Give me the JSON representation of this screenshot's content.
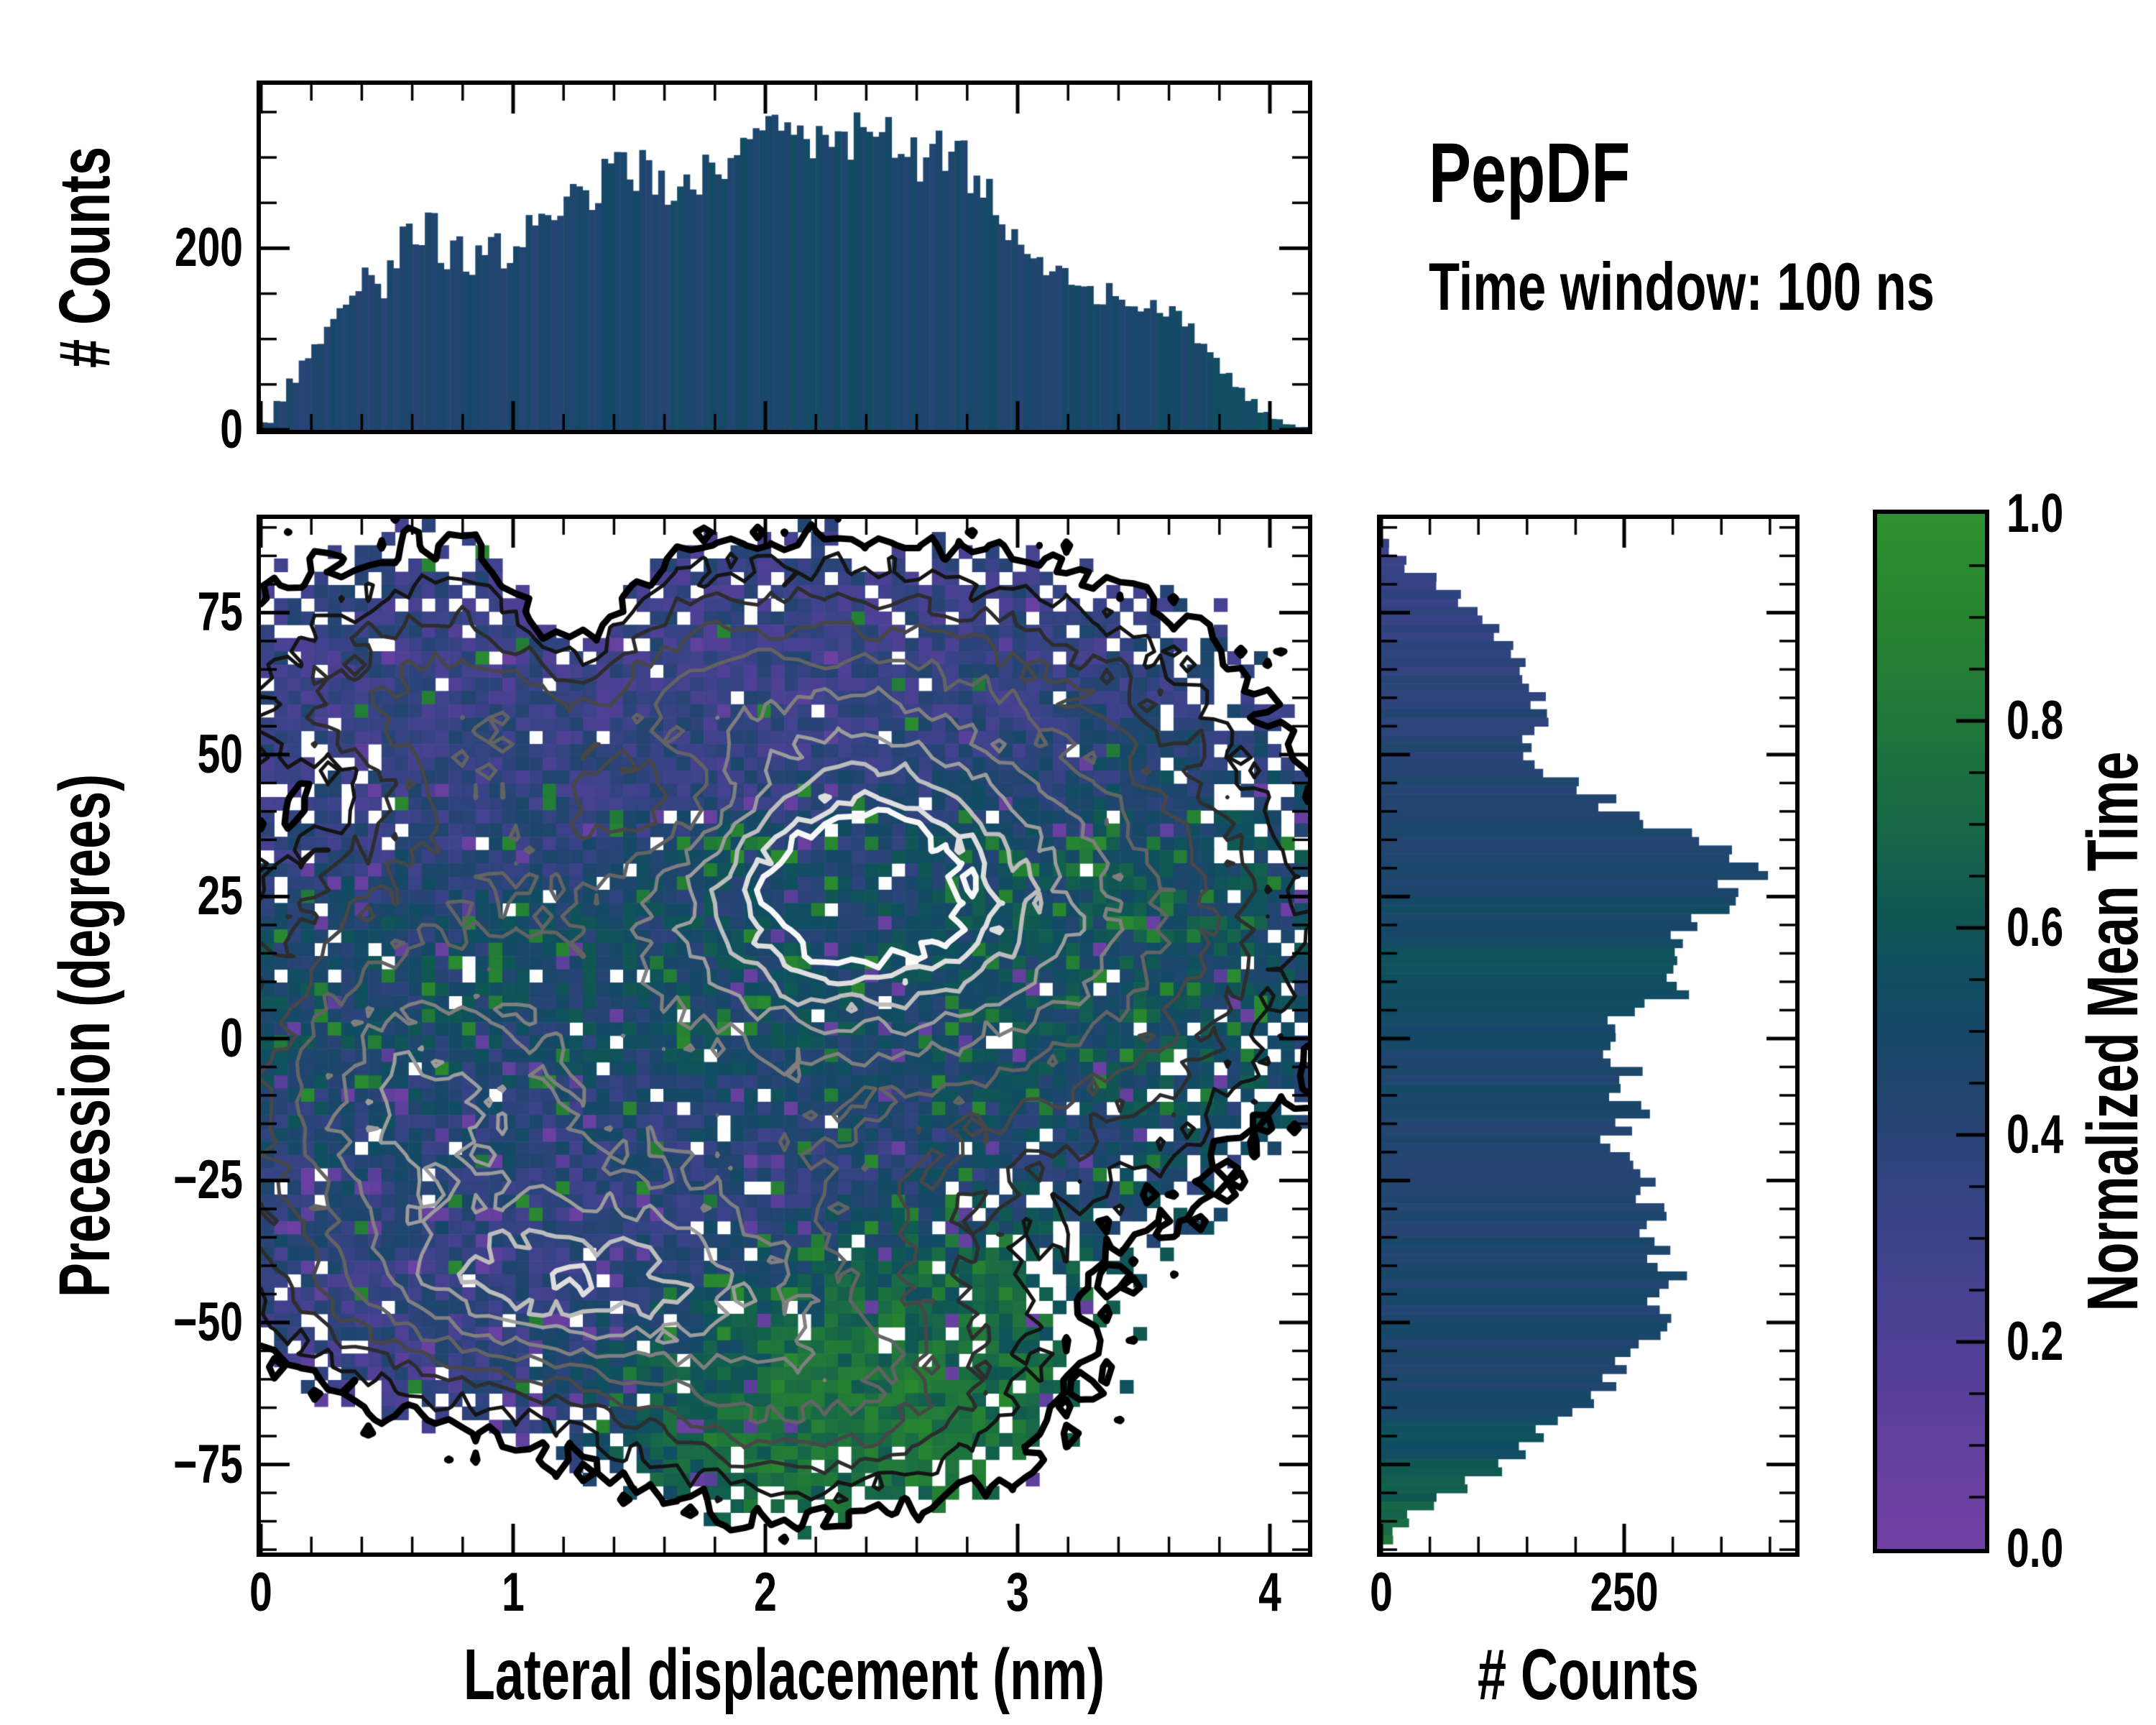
{
  "figure": {
    "title": "PepDF",
    "subtitle": "Time window: 100 ns"
  },
  "axes": {
    "top_hist": {
      "ylabel": "# Counts",
      "ytick_labels": [
        "0",
        "200"
      ],
      "ytick_values": [
        0,
        200
      ],
      "yminor_step": 50,
      "ylim": [
        0,
        380
      ],
      "xlim": [
        0,
        4.151
      ]
    },
    "main": {
      "xlabel": "Lateral displacement (nm)",
      "ylabel": "Precession (degrees)",
      "xtick_labels": [
        "0",
        "1",
        "2",
        "3",
        "4"
      ],
      "xtick_values": [
        0,
        1,
        2,
        3,
        4
      ],
      "xminor_step": 0.2,
      "ytick_labels": [
        "75",
        "50",
        "25",
        "0",
        "−25",
        "−50",
        "−75"
      ],
      "ytick_values": [
        75,
        50,
        25,
        0,
        -25,
        -50,
        -75
      ],
      "yminor_step": 5,
      "xlim": [
        0,
        4.151
      ],
      "ylim": [
        -90.5,
        91.5
      ]
    },
    "right_hist": {
      "xlabel": "# Counts",
      "xtick_labels": [
        "0",
        "250"
      ],
      "xtick_values": [
        0,
        250
      ],
      "xminor_step": 50,
      "xlim": [
        0,
        426
      ],
      "ylim": [
        -90.5,
        91.5
      ]
    },
    "colorbar": {
      "label": "Normalized Mean Time",
      "tick_labels": [
        "0.0",
        "0.2",
        "0.4",
        "0.6",
        "0.8",
        "1.0"
      ],
      "tick_values": [
        0,
        0.2,
        0.4,
        0.6,
        0.8,
        1.0
      ],
      "minor_step": 0.05,
      "lim": [
        0,
        1
      ]
    }
  },
  "chart_data": [
    {
      "type": "bar",
      "name": "top_histogram",
      "title": "Marginal histogram of lateral displacement",
      "xlabel": "Lateral displacement (nm)",
      "ylabel": "# Counts",
      "x_start": 0,
      "bin_width": 0.05,
      "ylim": [
        0,
        380
      ],
      "values": [
        8,
        30,
        55,
        78,
        98,
        120,
        140,
        155,
        170,
        152,
        188,
        230,
        196,
        235,
        186,
        202,
        166,
        200,
        216,
        186,
        210,
        226,
        240,
        230,
        256,
        270,
        246,
        286,
        300,
        262,
        296,
        270,
        246,
        266,
        256,
        290,
        268,
        306,
        312,
        326,
        356,
        320,
        336,
        308,
        330,
        322,
        312,
        346,
        340,
        330,
        298,
        312,
        290,
        322,
        296,
        310,
        272,
        262,
        238,
        222,
        200,
        186,
        172,
        180,
        162,
        150,
        142,
        156,
        136,
        130,
        142,
        126,
        130,
        120,
        100,
        82,
        62,
        46,
        32,
        20,
        12,
        6,
        3,
        2
      ],
      "bar_value_stops": [
        [
          0,
          0.44
        ],
        [
          1.0,
          0.45
        ],
        [
          2.2,
          0.5
        ],
        [
          3.0,
          0.46
        ],
        [
          3.8,
          0.52
        ],
        [
          4.15,
          0.6
        ]
      ]
    },
    {
      "type": "heatmap",
      "name": "main_heatmap",
      "title": "2D histogram of precession vs lateral displacement, colored by normalized mean time, with count-density contours",
      "xlabel": "Lateral displacement (nm)",
      "ylabel": "Precession (degrees)",
      "xlim": [
        0,
        4.151
      ],
      "ylim": [
        -90.5,
        91.5
      ],
      "grid": [
        78,
        78
      ],
      "occupancy_threshold": 0.1,
      "density_peaks": [
        {
          "x": 2.35,
          "y": 27,
          "a": 0.72,
          "sx": 0.5,
          "sy": 17
        },
        {
          "x": 1.15,
          "y": -45,
          "a": 0.45,
          "sx": 0.55,
          "sy": 10
        },
        {
          "x": 1.6,
          "y": -35,
          "a": 0.22,
          "sx": 0.7,
          "sy": 16
        },
        {
          "x": 0.85,
          "y": 55,
          "a": 0.32,
          "sx": 0.75,
          "sy": 20
        },
        {
          "x": 2.4,
          "y": 62,
          "a": 0.3,
          "sx": 0.8,
          "sy": 15
        },
        {
          "x": 0.55,
          "y": -12,
          "a": 0.45,
          "sx": 0.45,
          "sy": 22
        },
        {
          "x": 2.2,
          "y": -62,
          "a": 0.36,
          "sx": 0.55,
          "sy": 13
        },
        {
          "x": 3.3,
          "y": 22,
          "a": 0.36,
          "sx": 0.55,
          "sy": 24
        },
        {
          "x": 1.8,
          "y": 0,
          "a": 0.4,
          "sx": 1.1,
          "sy": 35
        },
        {
          "x": 1.25,
          "y": 80,
          "a": -0.3,
          "sx": 0.18,
          "sy": 16
        },
        {
          "x": 1.55,
          "y": 42,
          "a": -0.26,
          "sx": 0.28,
          "sy": 8
        },
        {
          "x": 0.3,
          "y": 42,
          "a": -0.16,
          "sx": 0.25,
          "sy": 7
        }
      ],
      "value_blobs": [
        {
          "x": 1.2,
          "y": 68,
          "sx": 1.6,
          "sy": 16,
          "v": 0.3,
          "w": 8
        },
        {
          "x": 2.8,
          "y": 70,
          "sx": 1.2,
          "sy": 14,
          "v": 0.3,
          "w": 8
        },
        {
          "x": 0.5,
          "y": 45,
          "sx": 0.7,
          "sy": 12,
          "v": 0.31,
          "w": 4
        },
        {
          "x": 2.3,
          "y": 25,
          "sx": 0.8,
          "sy": 18,
          "v": 0.5,
          "w": 3
        },
        {
          "x": 3.4,
          "y": 25,
          "sx": 0.5,
          "sy": 25,
          "v": 0.62,
          "w": 3.5
        },
        {
          "x": 1.9,
          "y": 8,
          "sx": 0.6,
          "sy": 14,
          "v": 0.56,
          "w": 2.5
        },
        {
          "x": 0.4,
          "y": 5,
          "sx": 0.4,
          "sy": 18,
          "v": 0.55,
          "w": 2.5
        },
        {
          "x": 0.9,
          "y": -15,
          "sx": 0.5,
          "sy": 12,
          "v": 0.38,
          "w": 2
        },
        {
          "x": 1.1,
          "y": -55,
          "sx": 0.9,
          "sy": 18,
          "v": 0.3,
          "w": 3
        },
        {
          "x": 0.45,
          "y": -68,
          "sx": 0.5,
          "sy": 10,
          "v": 0.24,
          "w": 3
        },
        {
          "x": 2.3,
          "y": -66,
          "sx": 0.55,
          "sy": 13,
          "v": 0.85,
          "w": 9
        },
        {
          "x": 2.7,
          "y": -45,
          "sx": 0.4,
          "sy": 10,
          "v": 0.72,
          "w": 4
        },
        {
          "x": 3.6,
          "y": 55,
          "sx": 0.5,
          "sy": 12,
          "v": 0.45,
          "w": 2
        },
        {
          "x": 2.2,
          "y": -25,
          "sx": 0.7,
          "sy": 12,
          "v": 0.35,
          "w": 2
        }
      ],
      "contour_levels": [
        {
          "v": 0.1,
          "color": "#000000",
          "width": 9
        },
        {
          "v": 0.17,
          "color": "#141414",
          "width": 5
        },
        {
          "v": 0.25,
          "color": "#2d2d2d",
          "width": 5
        },
        {
          "v": 0.34,
          "color": "#474747",
          "width": 5
        },
        {
          "v": 0.44,
          "color": "#636363",
          "width": 5
        },
        {
          "v": 0.55,
          "color": "#7f7f7f",
          "width": 5
        },
        {
          "v": 0.66,
          "color": "#9c9c9c",
          "width": 5
        },
        {
          "v": 0.76,
          "color": "#bcbcbc",
          "width": 6
        },
        {
          "v": 0.86,
          "color": "#dedede",
          "width": 7
        },
        {
          "v": 0.93,
          "color": "#f7f7f7",
          "width": 8
        }
      ],
      "colormap": [
        [
          0.0,
          "#7040a4"
        ],
        [
          0.08,
          "#66409f"
        ],
        [
          0.18,
          "#523f97"
        ],
        [
          0.28,
          "#3f428c"
        ],
        [
          0.36,
          "#31437f"
        ],
        [
          0.44,
          "#21456f"
        ],
        [
          0.5,
          "#174868"
        ],
        [
          0.56,
          "#0f4f60"
        ],
        [
          0.62,
          "#105852"
        ],
        [
          0.7,
          "#176847"
        ],
        [
          0.8,
          "#1f773a"
        ],
        [
          0.9,
          "#278430"
        ],
        [
          1.0,
          "#2e9130"
        ]
      ]
    },
    {
      "type": "bar",
      "name": "right_histogram",
      "orientation": "horizontal",
      "title": "Marginal histogram of precession",
      "xlabel": "# Counts",
      "ylabel": "Precession (degrees)",
      "y_start": 88,
      "bin_width": 3,
      "xlim": [
        0,
        426
      ],
      "values": [
        8,
        25,
        55,
        80,
        100,
        120,
        135,
        150,
        145,
        160,
        175,
        150,
        155,
        165,
        195,
        235,
        270,
        320,
        355,
        390,
        365,
        350,
        330,
        305,
        320,
        290,
        300,
        268,
        240,
        248,
        230,
        255,
        238,
        262,
        250,
        235,
        252,
        278,
        262,
        285,
        270,
        288,
        275,
        298,
        278,
        285,
        295,
        270,
        252,
        232,
        210,
        190,
        168,
        148,
        118,
        90,
        55,
        28,
        12
      ],
      "bar_value_stops": [
        [
          88,
          0.32
        ],
        [
          60,
          0.4
        ],
        [
          35,
          0.45
        ],
        [
          20,
          0.52
        ],
        [
          10,
          0.58
        ],
        [
          0,
          0.48
        ],
        [
          -20,
          0.44
        ],
        [
          -45,
          0.46
        ],
        [
          -60,
          0.48
        ],
        [
          -70,
          0.55
        ],
        [
          -80,
          0.65
        ],
        [
          -88,
          0.78
        ]
      ]
    }
  ]
}
